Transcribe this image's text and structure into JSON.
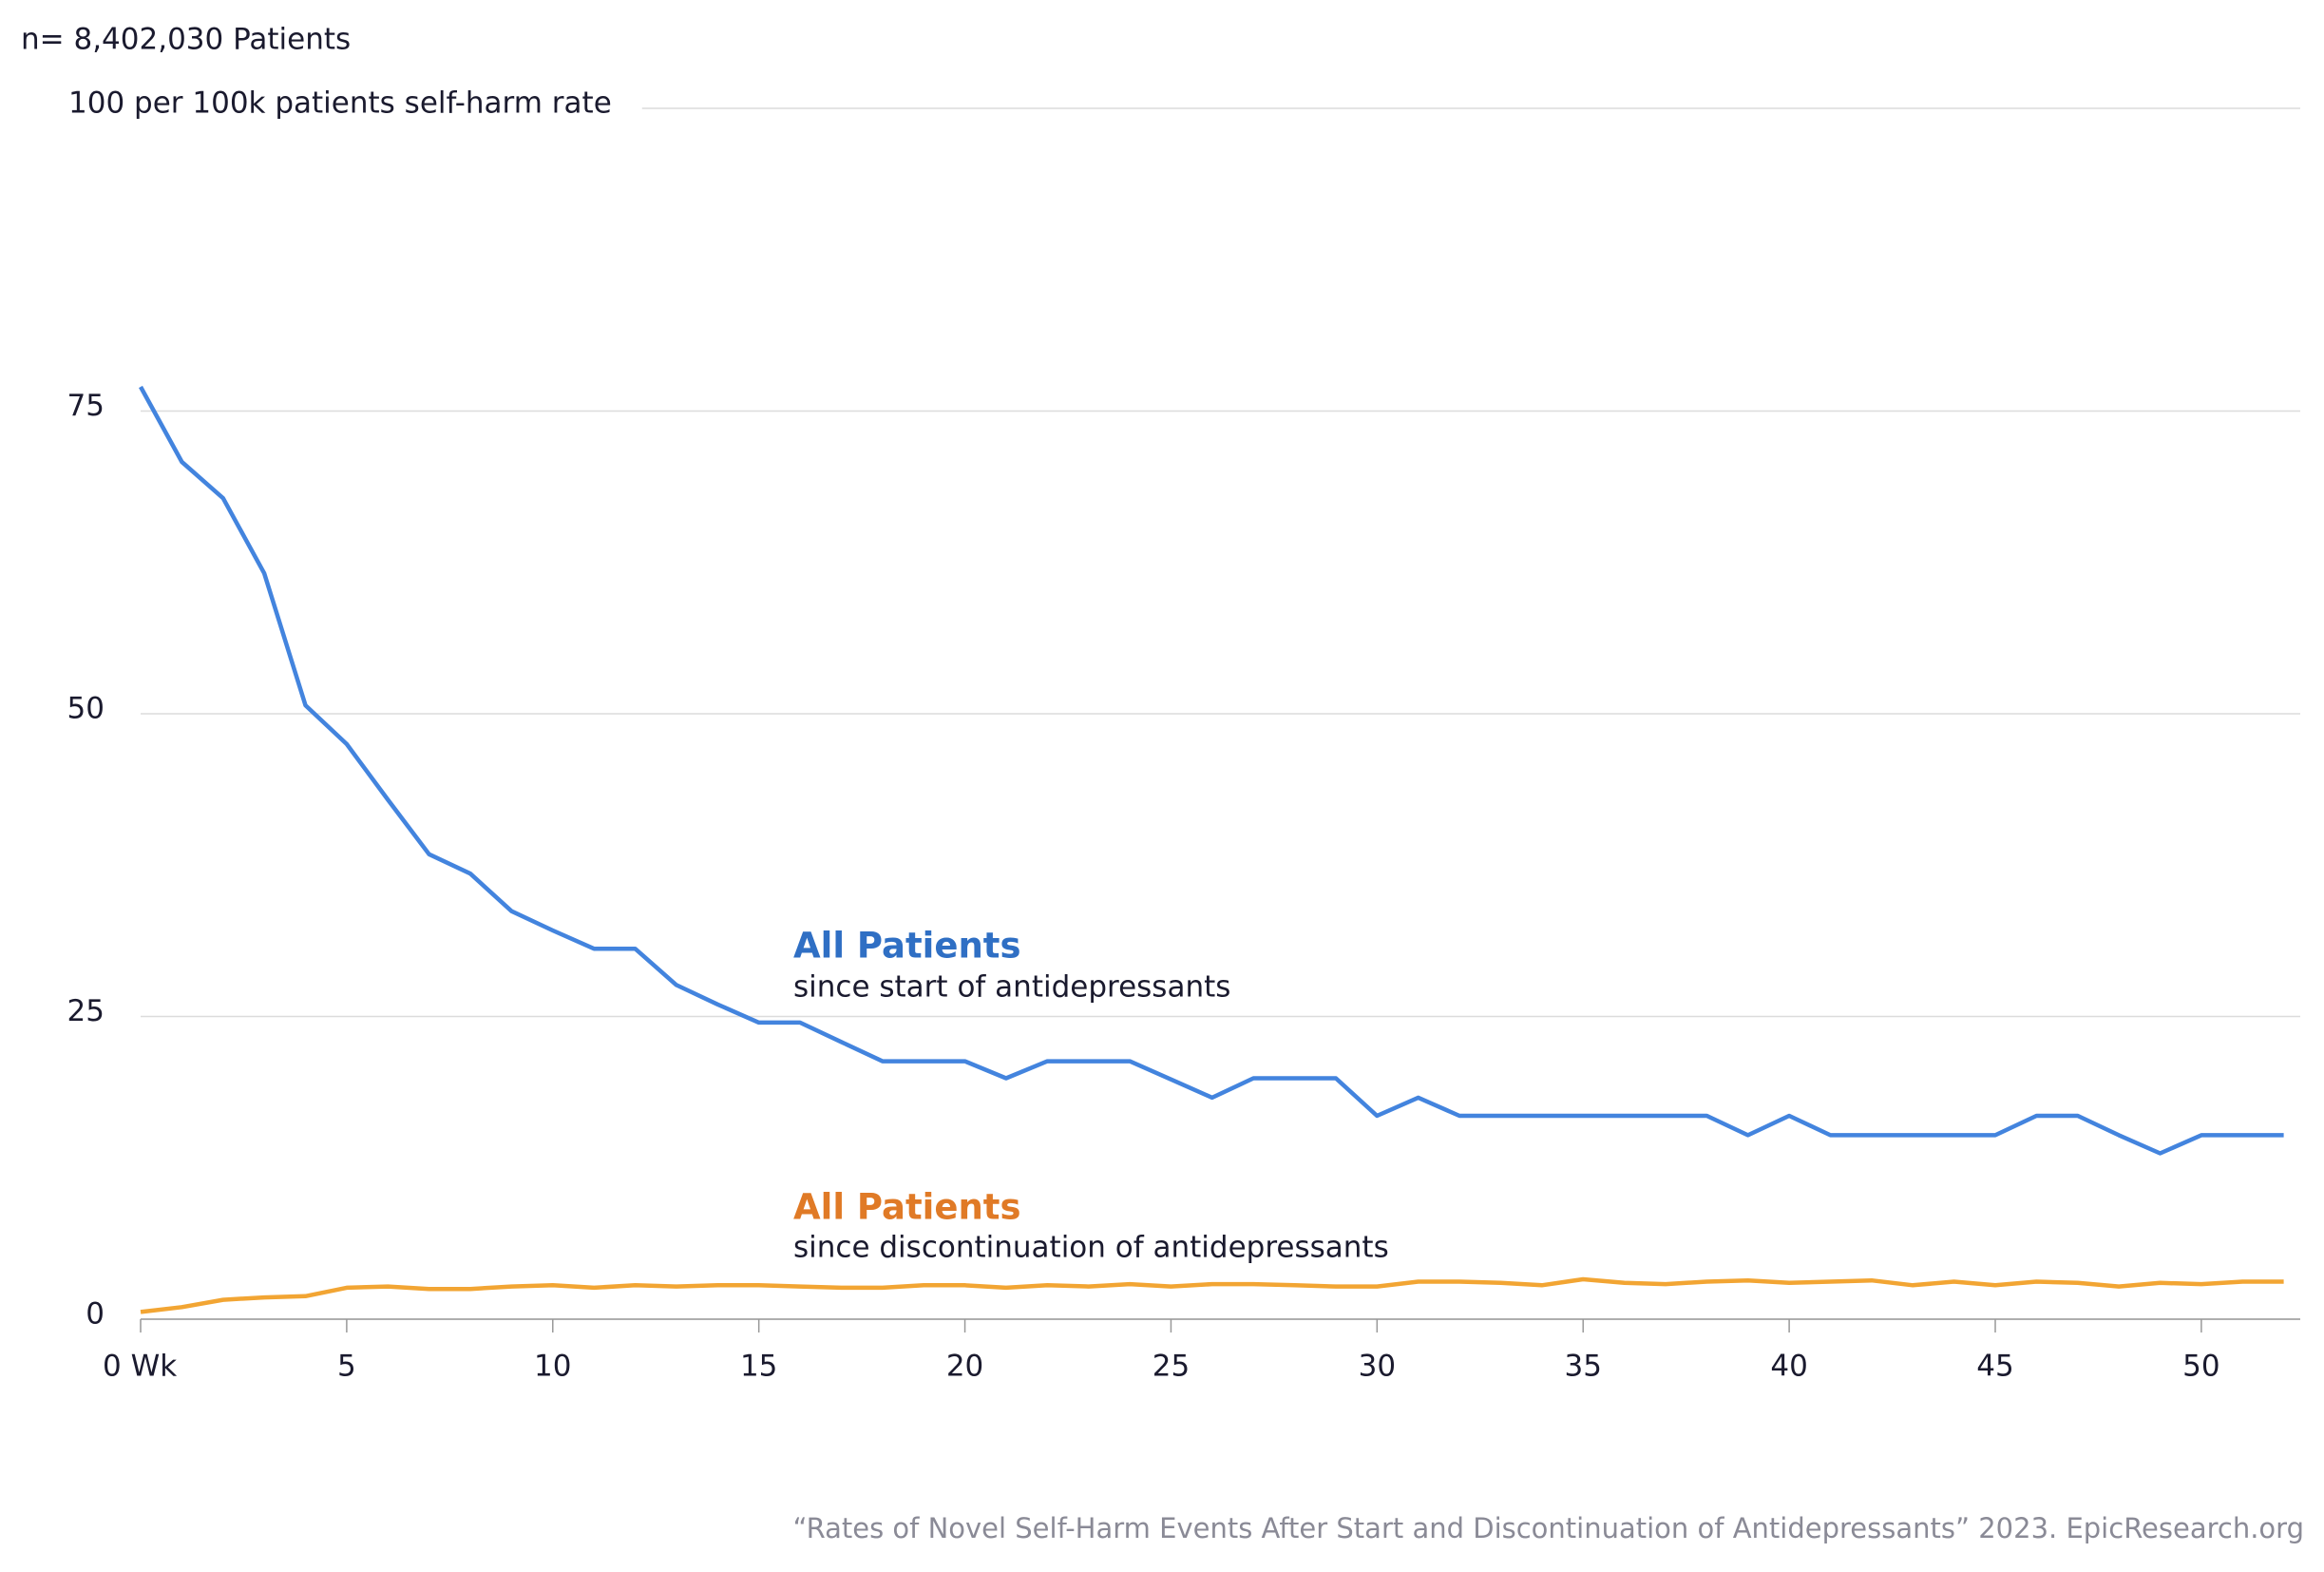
{
  "chart_data": {
    "type": "line",
    "subtitle": "n= 8,402,030 Patients",
    "source": "“Rates of Novel Self-Harm Events After Start and Discontinuation of Antidepressants” 2023. EpicResearch.org",
    "x": [
      0,
      1,
      2,
      3,
      4,
      5,
      6,
      7,
      8,
      9,
      10,
      11,
      12,
      13,
      14,
      15,
      16,
      17,
      18,
      19,
      20,
      21,
      22,
      23,
      24,
      25,
      26,
      27,
      28,
      29,
      30,
      31,
      32,
      33,
      34,
      35,
      36,
      37,
      38,
      39,
      40,
      41,
      42,
      43,
      44,
      45,
      46,
      47,
      48,
      49,
      50,
      51,
      52
    ],
    "xlim": [
      0,
      52.4
    ],
    "xticks": [
      {
        "value": 0,
        "label": "0 Wk"
      },
      5,
      10,
      15,
      20,
      25,
      30,
      35,
      40,
      45,
      50
    ],
    "ylim": [
      0,
      100
    ],
    "yticks": [
      0,
      25,
      50,
      75,
      {
        "value": 100,
        "label": "100 per 100k patients self-harm rate"
      }
    ],
    "grid": true,
    "series": [
      {
        "name": "All Patients",
        "note": "since start of antidepressants",
        "color": "#4384de",
        "label_color": "#2f6fc4",
        "values": [
          77,
          70.8,
          67.8,
          61.6,
          50.7,
          47.5,
          42.9,
          38.4,
          36.8,
          33.7,
          32.1,
          30.6,
          30.6,
          27.6,
          26,
          24.5,
          24.5,
          22.9,
          21.3,
          21.3,
          21.3,
          19.9,
          21.3,
          21.3,
          21.3,
          19.8,
          18.3,
          19.9,
          19.9,
          19.9,
          16.8,
          18.3,
          16.8,
          16.8,
          16.8,
          16.8,
          16.8,
          16.8,
          16.8,
          15.2,
          16.8,
          15.2,
          15.2,
          15.2,
          15.2,
          15.2,
          16.8,
          16.8,
          15.2,
          13.7,
          15.2,
          15.2,
          15.2
        ]
      },
      {
        "name": "All Patients",
        "note": "since discontinuation of antidepressants",
        "color": "#f2a533",
        "label_color": "#e07a26",
        "values": [
          0.6,
          1,
          1.6,
          1.8,
          1.9,
          2.6,
          2.7,
          2.5,
          2.5,
          2.7,
          2.8,
          2.6,
          2.8,
          2.7,
          2.8,
          2.8,
          2.7,
          2.6,
          2.6,
          2.8,
          2.8,
          2.6,
          2.8,
          2.7,
          2.9,
          2.7,
          2.9,
          2.9,
          2.8,
          2.7,
          2.7,
          3.1,
          3.1,
          3.0,
          2.8,
          3.3,
          3.0,
          2.9,
          3.1,
          3.2,
          3.0,
          3.1,
          3.2,
          2.8,
          3.1,
          2.8,
          3.1,
          3.0,
          2.7,
          3.0,
          2.9,
          3.1,
          3.1
        ]
      }
    ]
  }
}
